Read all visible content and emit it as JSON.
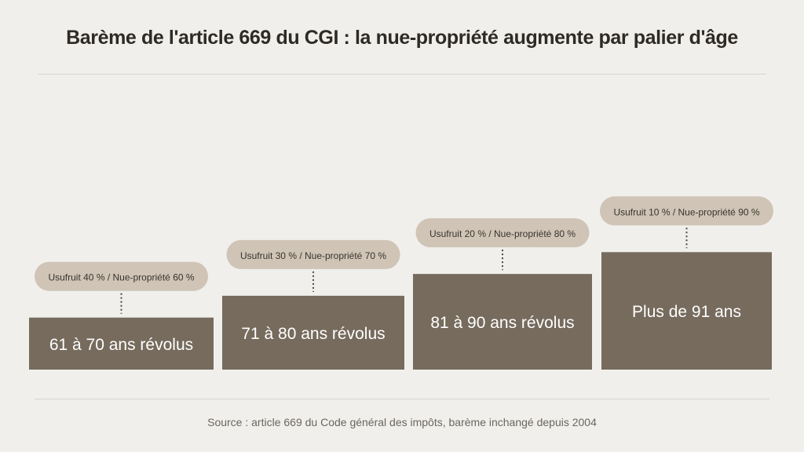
{
  "title": "Barème de l'article 669 du CGI : la nue-propriété augmente par palier d'âge",
  "source": "Source : article 669 du Code général des impôts, barème inchangé depuis 2004",
  "colors": {
    "bar": "#766b5d",
    "bar_text": "#ffffff",
    "pill": "#cfc4b6",
    "pill_text": "#3a342d",
    "connector": "#4d473f"
  },
  "chart_data": {
    "type": "bar",
    "title": "Barème de l'article 669 du CGI : la nue-propriété augmente par palier d'âge",
    "categories": [
      "61 à 70 ans révolus",
      "71 à 80 ans révolus",
      "81 à 90 ans révolus",
      "Plus de 91 ans"
    ],
    "values": [
      60,
      70,
      80,
      90
    ],
    "usufruit": [
      40,
      30,
      20,
      10
    ],
    "annotations": [
      "Usufruit 40 % / Nue-propriété 60 %",
      "Usufruit 30 % / Nue-propriété 70 %",
      "Usufruit 20 % / Nue-propriété 80 %",
      "Usufruit 10 % / Nue-propriété 90 %"
    ],
    "xlabel": "",
    "ylabel": "",
    "grid": false,
    "legend": "none"
  }
}
